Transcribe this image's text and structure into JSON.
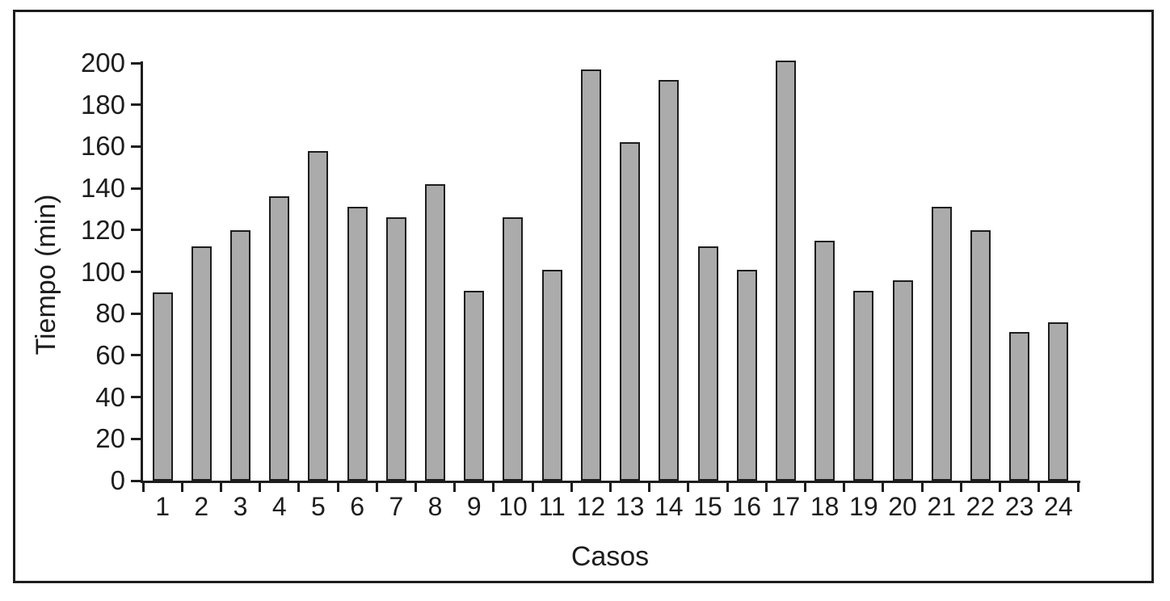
{
  "figure": {
    "background": "#ffffff",
    "frame_border_color": "#1d1d1d"
  },
  "chart_data": {
    "type": "bar",
    "title": "",
    "xlabel": "Casos",
    "ylabel": "Tiempo (min)",
    "categories": [
      "1",
      "2",
      "3",
      "4",
      "5",
      "6",
      "7",
      "8",
      "9",
      "10",
      "11",
      "12",
      "13",
      "14",
      "15",
      "16",
      "17",
      "18",
      "19",
      "20",
      "21",
      "22",
      "23",
      "24"
    ],
    "values": [
      90,
      112,
      120,
      136,
      158,
      131,
      126,
      142,
      91,
      126,
      101,
      197,
      162,
      192,
      112,
      101,
      201,
      115,
      91,
      96,
      131,
      120,
      71,
      76
    ],
    "ylim": [
      0,
      200
    ],
    "yticks": [
      0,
      20,
      40,
      60,
      80,
      100,
      120,
      140,
      160,
      180,
      200
    ],
    "grid": "off",
    "legend": "none",
    "bar_fill": "#ababab",
    "bar_stroke": "#1d1d1d",
    "axis_color": "#1d1d1d",
    "text_color": "#1d1d1d"
  }
}
